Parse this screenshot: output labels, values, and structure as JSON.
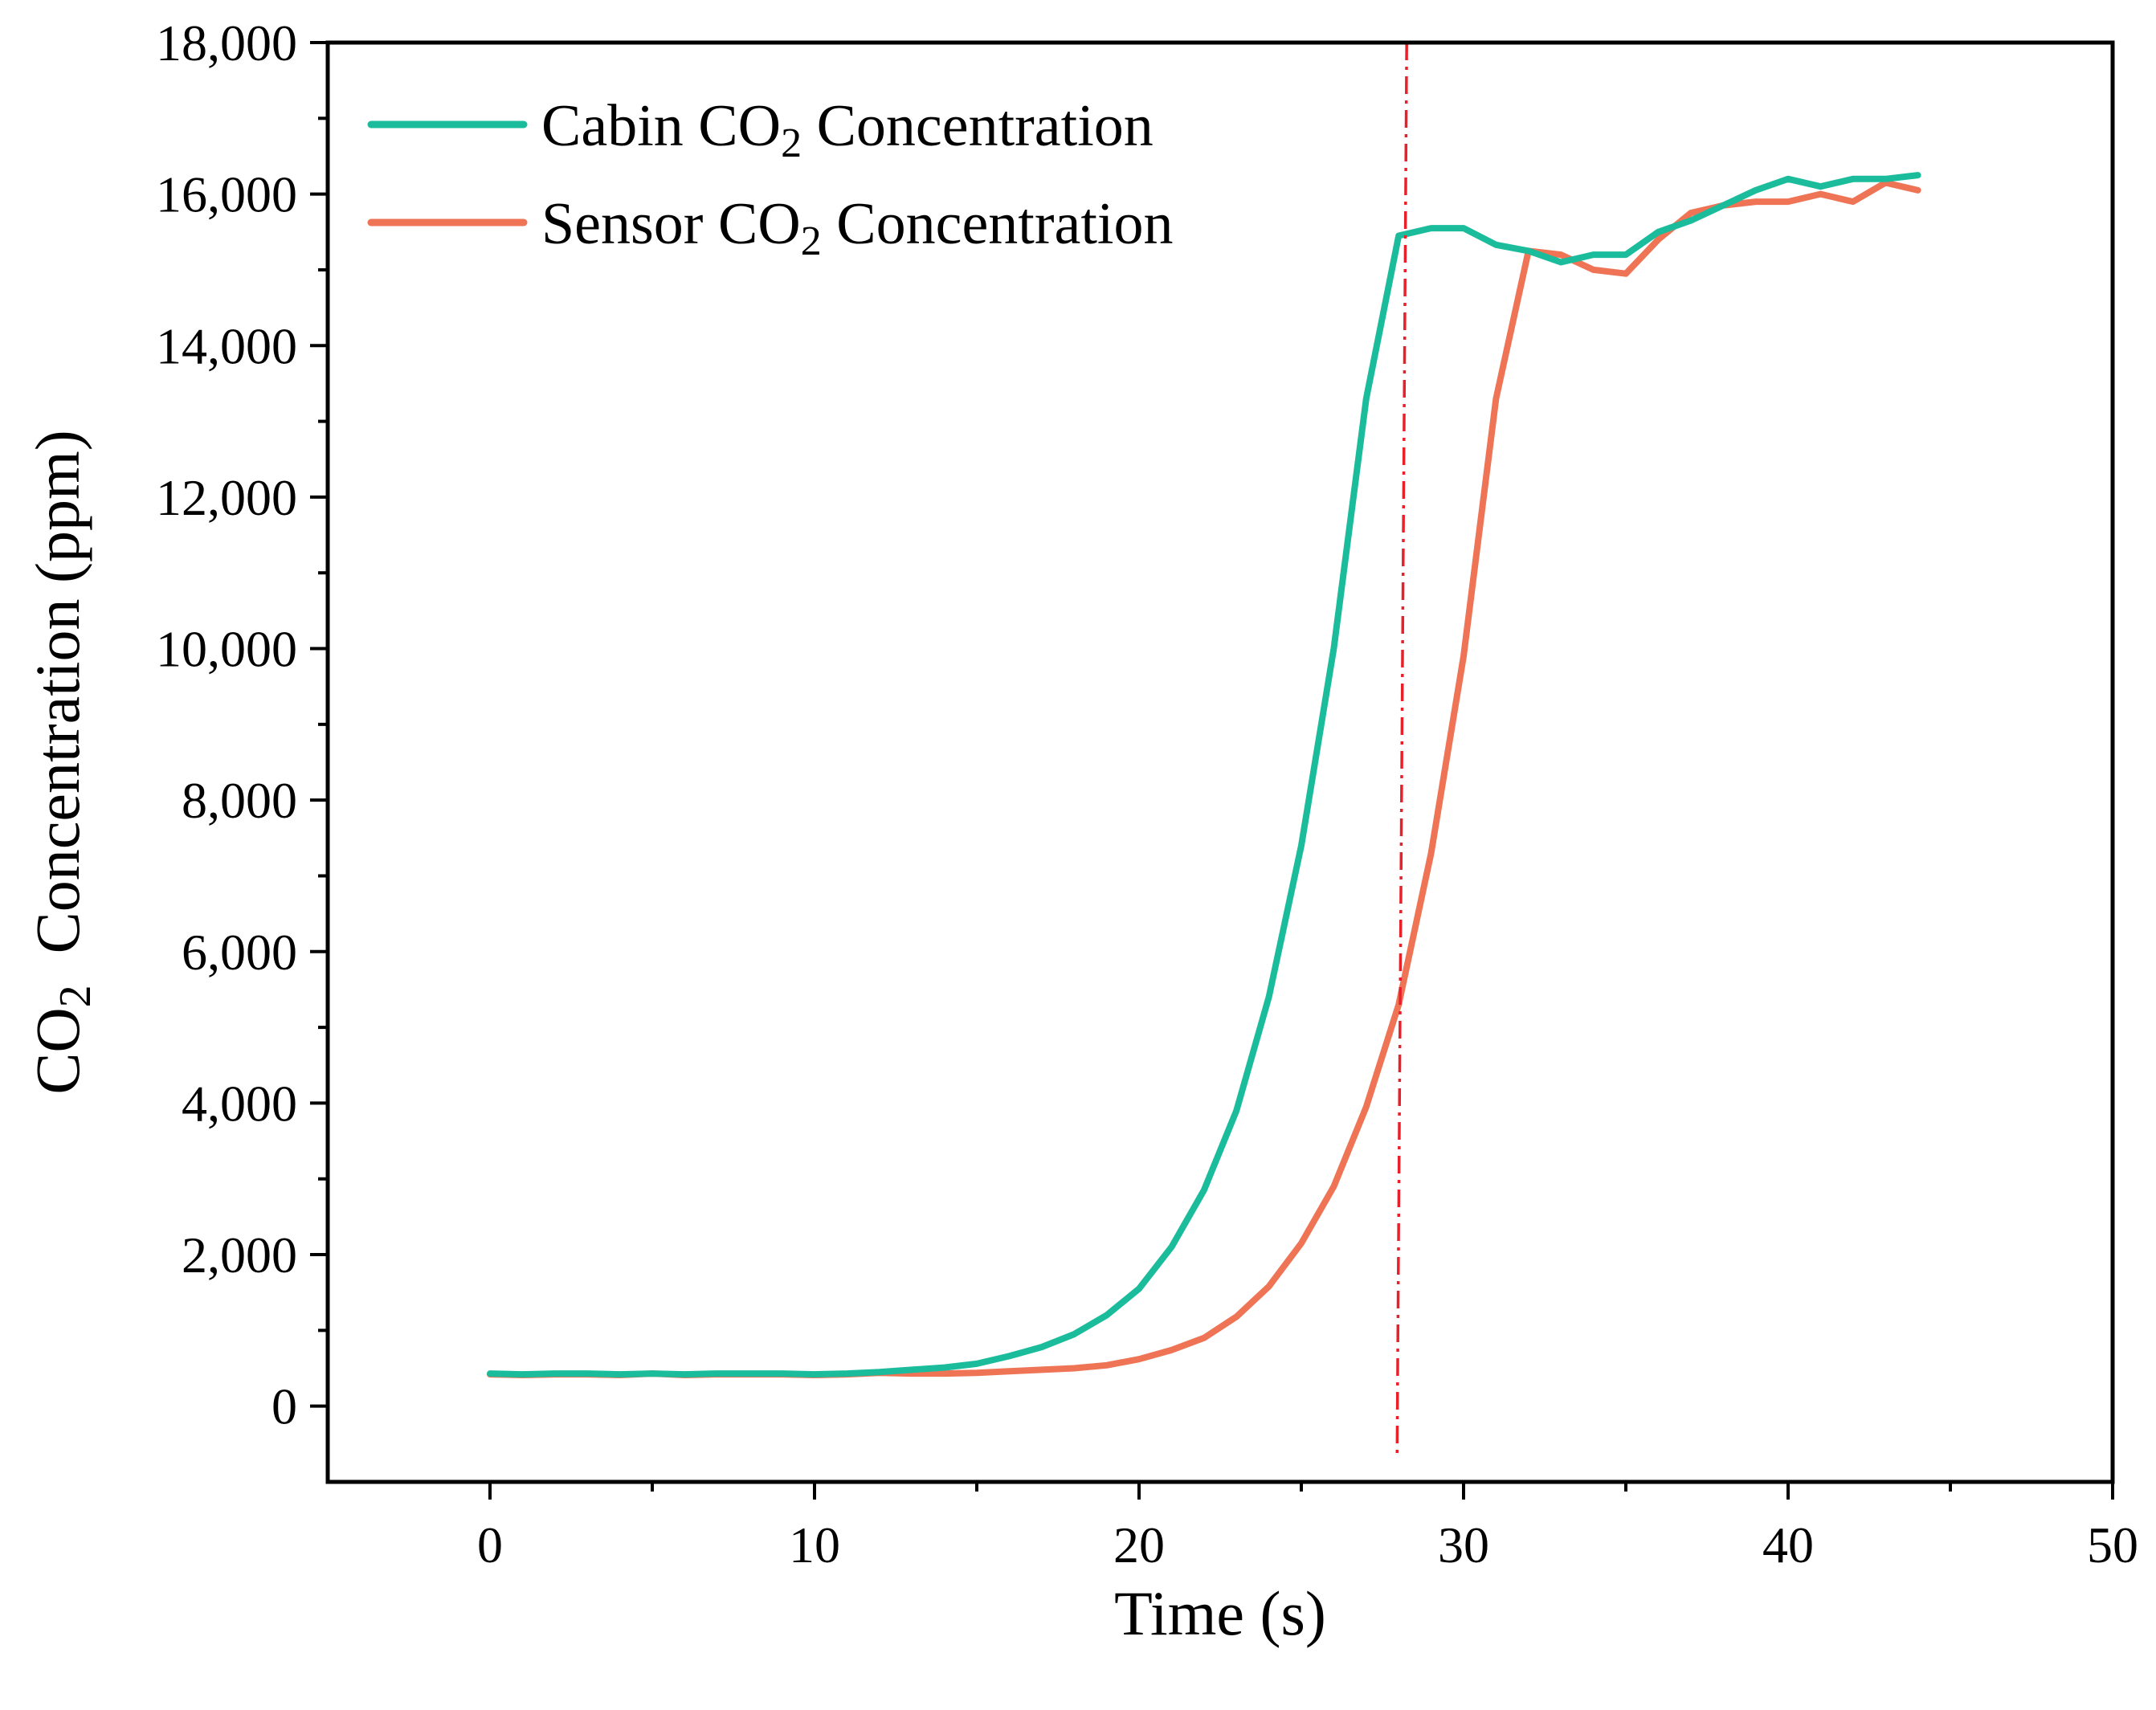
{
  "chart_data": {
    "type": "line",
    "title": "",
    "xlabel": "Time (s)",
    "ylabel": "CO2 Concentration (ppm)",
    "ylabel_parts": {
      "pre": "CO",
      "sub": "2",
      "post": "  Concentration (ppm)"
    },
    "xlim": [
      -5,
      50
    ],
    "ylim": [
      -1000,
      18000
    ],
    "x_ticks": [
      0,
      10,
      20,
      30,
      40,
      50
    ],
    "x_tick_labels": [
      "0",
      "10",
      "20",
      "30",
      "40",
      "50"
    ],
    "y_ticks": [
      0,
      2000,
      4000,
      6000,
      8000,
      10000,
      12000,
      14000,
      16000,
      18000
    ],
    "y_tick_labels": [
      "0",
      "2,000",
      "4,000",
      "6,000",
      "8,000",
      "10,000",
      "12,000",
      "14,000",
      "16,000",
      "18,000"
    ],
    "grid": false,
    "legend_position": "top-left",
    "x": [
      0,
      1,
      2,
      3,
      4,
      5,
      6,
      7,
      8,
      9,
      10,
      11,
      12,
      13,
      14,
      15,
      16,
      17,
      18,
      19,
      20,
      21,
      22,
      23,
      24,
      25,
      26,
      27,
      28,
      29,
      30,
      31,
      32,
      33,
      34,
      35,
      36,
      37,
      38,
      39,
      40,
      41,
      42,
      43,
      44
    ],
    "series": [
      {
        "name": "Cabin CO2 Concentration",
        "legend_parts": {
          "pre": "Cabin CO",
          "sub": "2",
          "post": " Concentration"
        },
        "color": "#1abc9c",
        "values": [
          430,
          420,
          430,
          430,
          420,
          430,
          420,
          430,
          430,
          430,
          420,
          430,
          450,
          480,
          510,
          560,
          660,
          780,
          950,
          1200,
          1550,
          2100,
          2850,
          3900,
          5400,
          7400,
          10000,
          13300,
          15450,
          15550,
          15550,
          15330,
          15250,
          15100,
          15200,
          15200,
          15500,
          15650,
          15850,
          16050,
          16200,
          16100,
          16200,
          16200,
          16250
        ]
      },
      {
        "name": "Sensor CO2 Concentration",
        "legend_parts": {
          "pre": "Sensor CO",
          "sub": "2",
          "post": " Concentration"
        },
        "color": "#ee7455",
        "values": [
          420,
          410,
          420,
          420,
          410,
          430,
          410,
          420,
          420,
          420,
          410,
          420,
          440,
          430,
          430,
          440,
          460,
          480,
          500,
          540,
          620,
          740,
          900,
          1180,
          1580,
          2150,
          2900,
          3950,
          5300,
          7300,
          9900,
          13300,
          15250,
          15200,
          15000,
          14950,
          15400,
          15750,
          15850,
          15900,
          15900,
          16000,
          15900,
          16150,
          16050
        ]
      }
    ],
    "annotations": [
      {
        "type": "vertical-line",
        "x": 28,
        "style": "dash-dot",
        "color": "#e8202a"
      }
    ]
  }
}
